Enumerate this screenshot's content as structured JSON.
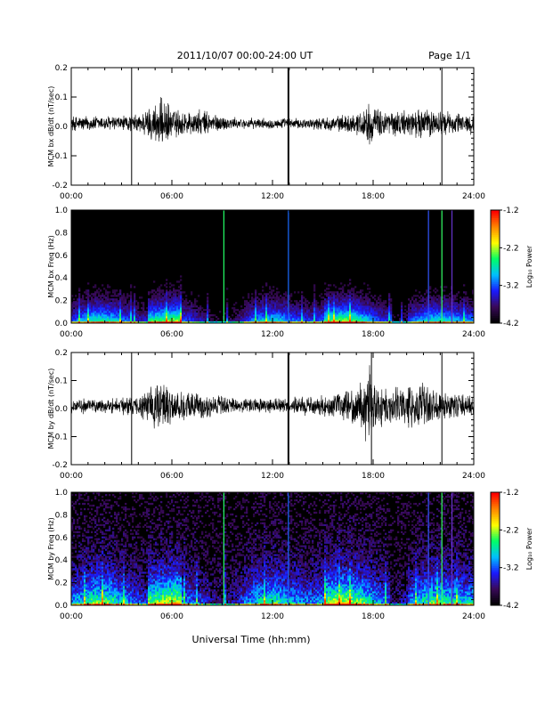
{
  "header": {
    "title": "2011/10/07  00:00-24:00 UT",
    "page": "Page 1/1"
  },
  "footer": {
    "xlabel": "Universal Time (hh:mm)"
  },
  "colorbar": {
    "label": "Log₁₀ Power",
    "ticks": [
      "-1.2",
      "-2.2",
      "-3.2",
      "-4.2"
    ],
    "range": [
      -4.2,
      -1.2
    ],
    "colors": [
      "#000000",
      "#3a0a5a",
      "#1a1aff",
      "#00c0ff",
      "#00ff66",
      "#ffff00",
      "#ff8800",
      "#ff0000"
    ]
  },
  "chart_data": [
    {
      "type": "line",
      "ylabel": "MCM bx dB/dt (nT/sec)",
      "xlim": [
        0,
        24
      ],
      "ylim": [
        -0.2,
        0.2
      ],
      "xticks": [
        "00:00",
        "06:00",
        "12:00",
        "18:00",
        "24:00"
      ],
      "yticks": [
        "0.2",
        "0.1",
        "0.0",
        "-0.1",
        "-0.2"
      ],
      "spikes_hours": [
        3.6,
        12.95,
        22.1
      ],
      "envelope": {
        "hours": [
          0,
          1,
          2,
          3,
          4,
          5,
          5.5,
          6,
          7,
          8,
          9,
          10,
          11,
          12,
          13,
          14,
          15,
          16,
          17,
          17.8,
          18,
          19,
          20,
          21,
          22,
          23,
          24
        ],
        "amplitude": [
          0.03,
          0.03,
          0.03,
          0.03,
          0.035,
          0.08,
          0.1,
          0.06,
          0.05,
          0.05,
          0.03,
          0.02,
          0.02,
          0.02,
          0.02,
          0.02,
          0.025,
          0.03,
          0.04,
          0.08,
          0.06,
          0.05,
          0.05,
          0.06,
          0.05,
          0.04,
          0.04
        ]
      }
    },
    {
      "type": "heatmap",
      "ylabel": "MCM bx Freq (Hz)",
      "xlim": [
        0,
        24
      ],
      "ylim": [
        0,
        1
      ],
      "xticks": [
        "00:00",
        "06:00",
        "12:00",
        "18:00",
        "24:00"
      ],
      "yticks": [
        "1.0",
        "0.8",
        "0.6",
        "0.4",
        "0.2",
        "0.0"
      ],
      "colorbar_range": [
        -4.2,
        -1.2
      ],
      "vertical_lines_hours": [
        9.1,
        12.95,
        21.3,
        22.1,
        22.7
      ]
    },
    {
      "type": "line",
      "ylabel": "MCM by dB/dt (nT/sec)",
      "xlim": [
        0,
        24
      ],
      "ylim": [
        -0.2,
        0.2
      ],
      "xticks": [
        "00:00",
        "06:00",
        "12:00",
        "18:00",
        "24:00"
      ],
      "yticks": [
        "0.2",
        "0.1",
        "0.0",
        "-0.1",
        "-0.2"
      ],
      "spikes_hours": [
        3.6,
        12.95,
        17.9,
        22.1
      ],
      "envelope": {
        "hours": [
          0,
          1,
          2,
          3,
          4,
          5,
          5.5,
          6,
          7,
          8,
          9,
          10,
          11,
          12,
          13,
          14,
          15,
          16,
          17,
          17.8,
          18,
          19,
          20,
          21,
          22,
          23,
          24
        ],
        "amplitude": [
          0.03,
          0.03,
          0.03,
          0.035,
          0.04,
          0.09,
          0.12,
          0.07,
          0.06,
          0.05,
          0.04,
          0.03,
          0.03,
          0.03,
          0.03,
          0.04,
          0.04,
          0.05,
          0.07,
          0.16,
          0.1,
          0.07,
          0.08,
          0.09,
          0.06,
          0.05,
          0.04
        ]
      }
    },
    {
      "type": "heatmap",
      "ylabel": "MCM by Freq (Hz)",
      "xlim": [
        0,
        24
      ],
      "ylim": [
        0,
        1
      ],
      "xticks": [
        "00:00",
        "06:00",
        "12:00",
        "18:00",
        "24:00"
      ],
      "yticks": [
        "1.0",
        "0.8",
        "0.6",
        "0.4",
        "0.2",
        "0.0"
      ],
      "colorbar_range": [
        -4.2,
        -1.2
      ],
      "vertical_lines_hours": [
        9.1,
        12.95,
        21.3,
        22.1,
        22.7
      ]
    }
  ]
}
